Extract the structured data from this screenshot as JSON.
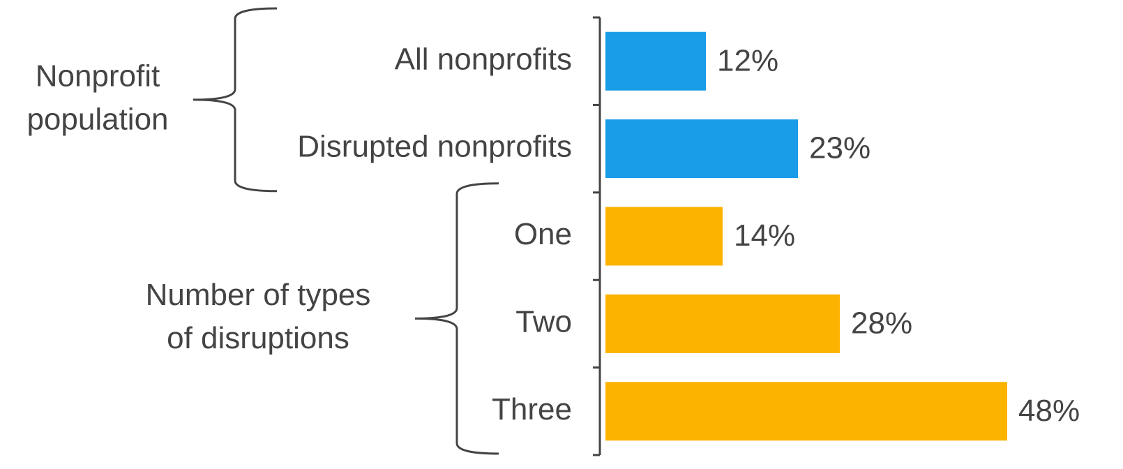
{
  "chart_data": {
    "type": "bar",
    "orientation": "horizontal",
    "groups": [
      {
        "label": [
          "Nonprofit",
          "population"
        ],
        "color": "#199de8",
        "categories": [
          "All nonprofits",
          "Disrupted nonprofits"
        ],
        "values": [
          12,
          23
        ],
        "value_labels": [
          "12%",
          "23%"
        ]
      },
      {
        "label": [
          "Number of types",
          "of disruptions"
        ],
        "color": "#fbb300",
        "categories": [
          "One",
          "Two",
          "Three"
        ],
        "values": [
          14,
          28,
          48
        ],
        "value_labels": [
          "14%",
          "28%",
          "48%"
        ]
      }
    ]
  }
}
